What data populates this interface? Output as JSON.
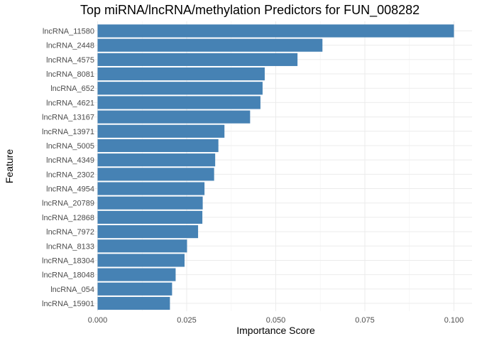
{
  "chart_data": {
    "type": "bar",
    "orientation": "horizontal",
    "title": "Top miRNA/lncRNA/methylation Predictors for FUN_008282",
    "xlabel": "Importance Score",
    "ylabel": "Feature",
    "xlim": [
      0,
      0.1
    ],
    "xticks": [
      0,
      0.025,
      0.05,
      0.075,
      0.1
    ],
    "xtick_labels": [
      "0.000",
      "0.025",
      "0.050",
      "0.075",
      "0.100"
    ],
    "grid": true,
    "bar_color": "#4682b4",
    "categories": [
      "lncRNA_11580",
      "lncRNA_2448",
      "lncRNA_4575",
      "lncRNA_8081",
      "lncRNA_652",
      "lncRNA_4621",
      "lncRNA_13167",
      "lncRNA_13971",
      "lncRNA_5005",
      "lncRNA_4349",
      "lncRNA_2302",
      "lncRNA_4954",
      "lncRNA_20789",
      "lncRNA_12868",
      "lncRNA_7972",
      "lncRNA_8133",
      "lncRNA_18304",
      "lncRNA_18048",
      "lncRNA_054",
      "lncRNA_15901"
    ],
    "values": [
      0.1,
      0.0631,
      0.0561,
      0.0469,
      0.0463,
      0.0457,
      0.0428,
      0.0356,
      0.0339,
      0.033,
      0.0327,
      0.03,
      0.0295,
      0.0294,
      0.0282,
      0.0251,
      0.0244,
      0.0219,
      0.0209,
      0.0203
    ]
  }
}
